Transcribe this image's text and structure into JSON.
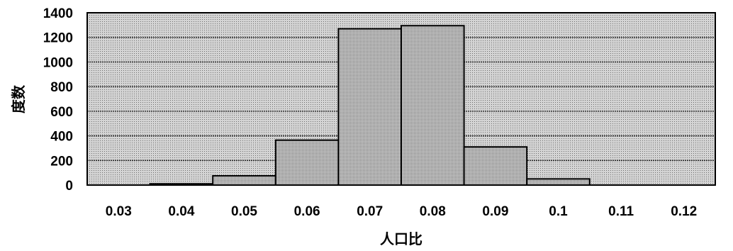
{
  "chart_data": {
    "type": "bar",
    "title": "",
    "xlabel": "人口比",
    "ylabel": "度数",
    "ylim": [
      0,
      1400
    ],
    "y_ticks": [
      "0",
      "200",
      "400",
      "600",
      "800",
      "1000",
      "1200",
      "1400"
    ],
    "categories": [
      "0.03",
      "0.04",
      "0.05",
      "0.06",
      "0.07",
      "0.08",
      "0.09",
      "0.1",
      "0.11",
      "0.12"
    ],
    "values": [
      0,
      10,
      75,
      365,
      1270,
      1295,
      310,
      50,
      0,
      0
    ],
    "grid": true,
    "legend": "none",
    "colors": {
      "plot_bg": "#cfcfcf",
      "bar_fill": "#bdbdbd",
      "grid": "#111111",
      "outline": "#000000"
    }
  }
}
